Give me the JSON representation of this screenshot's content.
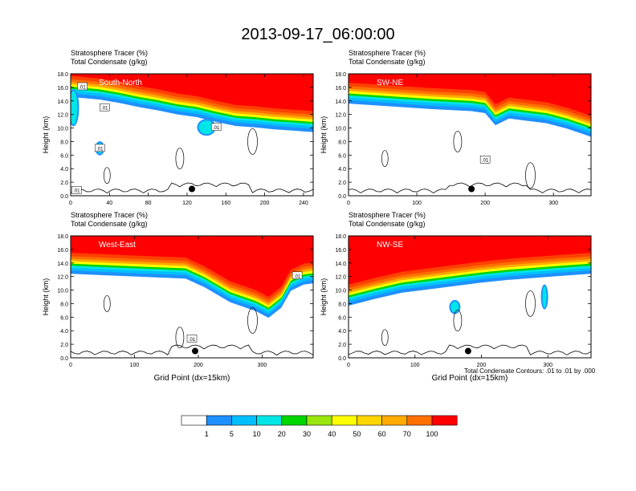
{
  "figure": {
    "title": "2013-09-17_06:00:00",
    "footnote": "Total Condensate Contours: .01 to .01 by .000",
    "xlabel": "Grid Point (dx=15km)"
  },
  "colors": {
    "levels": [
      "#ffffff",
      "#1e90ff",
      "#00bfff",
      "#00e5e5",
      "#00e08a",
      "#00d600",
      "#9ae60f",
      "#ffff00",
      "#ffd500",
      "#ffab00",
      "#ff7000",
      "#ff4100",
      "#ff0000"
    ],
    "contour": "#000000",
    "marker": "#000000",
    "axis": "#000000"
  },
  "chart_data": [
    {
      "type": "heatmap",
      "panel_label": "South-North",
      "title_line1": "Stratosphere Tracer   (%)",
      "title_line2": "Total Condensate   (g/kg)",
      "ylabel": "Height (km)",
      "xlabel": "",
      "xlim": [
        0,
        250
      ],
      "ylim": [
        0,
        18
      ],
      "xticks": [
        0,
        40,
        80,
        120,
        160,
        200,
        240
      ],
      "yticks": [
        "0.0",
        "2.0",
        "4.0",
        "6.0",
        "8.0",
        "10.0",
        "12.0",
        "14.0",
        "16.0",
        "18.0"
      ],
      "tropopause_km": [
        [
          0,
          16.2
        ],
        [
          30,
          15.8
        ],
        [
          50,
          15.3
        ],
        [
          70,
          14.7
        ],
        [
          90,
          14.2
        ],
        [
          110,
          13.6
        ],
        [
          130,
          13.2
        ],
        [
          150,
          12.5
        ],
        [
          170,
          11.9
        ],
        [
          190,
          11.7
        ],
        [
          210,
          11.4
        ],
        [
          230,
          11.2
        ],
        [
          250,
          11.0
        ]
      ],
      "blobs": [
        {
          "x": 3,
          "y": 13,
          "rx": 4,
          "ry": 2.5
        },
        {
          "x": 30,
          "y": 7.0,
          "rx": 3,
          "ry": 0.8
        },
        {
          "x": 140,
          "y": 10.1,
          "rx": 8,
          "ry": 1.0
        }
      ],
      "contour_labels": [
        {
          "x": 12,
          "y": 16.1,
          "text": ".01"
        },
        {
          "x": 35,
          "y": 13,
          "text": ".01"
        },
        {
          "x": 30,
          "y": 7,
          "text": ".01"
        },
        {
          "x": 150,
          "y": 10.1,
          "text": ".01"
        },
        {
          "x": 6,
          "y": 0.8,
          "text": ".01"
        }
      ],
      "marker": {
        "x": 125,
        "y": 1.0
      }
    },
    {
      "type": "heatmap",
      "panel_label": "SW-NE",
      "title_line1": "Stratosphere Tracer   (%)",
      "title_line2": "Total Condensate   (g/kg)",
      "ylabel": "Height (km)",
      "xlabel": "",
      "xlim": [
        0,
        355
      ],
      "ylim": [
        0,
        18
      ],
      "xticks": [
        0,
        100,
        200,
        300
      ],
      "yticks": [
        "0.0",
        "2.0",
        "4.0",
        "6.0",
        "8.0",
        "10.0",
        "12.0",
        "14.0",
        "16.0",
        "18.0"
      ],
      "tropopause_km": [
        [
          0,
          15.2
        ],
        [
          60,
          14.8
        ],
        [
          120,
          14.4
        ],
        [
          180,
          14.1
        ],
        [
          200,
          13.8
        ],
        [
          215,
          12.0
        ],
        [
          235,
          13.0
        ],
        [
          250,
          12.8
        ],
        [
          290,
          12.3
        ],
        [
          320,
          11.5
        ],
        [
          355,
          10.3
        ]
      ],
      "blobs": [],
      "contour_labels": [
        {
          "x": 200,
          "y": 5.3,
          "text": ".01"
        }
      ],
      "marker": {
        "x": 180,
        "y": 1.0
      }
    },
    {
      "type": "heatmap",
      "panel_label": "West-East",
      "title_line1": "Stratosphere Tracer   (%)",
      "title_line2": "Total Condensate   (g/kg)",
      "ylabel": "Height (km)",
      "xlabel": "Grid Point (dx=15km)",
      "xlim": [
        0,
        380
      ],
      "ylim": [
        0,
        18
      ],
      "xticks": [
        0,
        100,
        200,
        300
      ],
      "yticks": [
        "0.0",
        "2.0",
        "4.0",
        "6.0",
        "8.0",
        "10.0",
        "12.0",
        "14.0",
        "16.0",
        "18.0"
      ],
      "tropopause_km": [
        [
          0,
          14.0
        ],
        [
          100,
          13.6
        ],
        [
          180,
          13.3
        ],
        [
          210,
          12.0
        ],
        [
          250,
          9.8
        ],
        [
          290,
          8.5
        ],
        [
          310,
          7.5
        ],
        [
          330,
          9.0
        ],
        [
          345,
          11.5
        ],
        [
          365,
          12.4
        ],
        [
          380,
          12.6
        ]
      ],
      "blobs": [],
      "contour_labels": [
        {
          "x": 355,
          "y": 12.1,
          "text": ".01"
        },
        {
          "x": 190,
          "y": 2.8,
          "text": ".01"
        }
      ],
      "marker": {
        "x": 195,
        "y": 1.0
      }
    },
    {
      "type": "heatmap",
      "panel_label": "NW-SE",
      "title_line1": "Stratosphere Tracer   (%)",
      "title_line2": "Total Condensate   (g/kg)",
      "ylabel": "Height (km)",
      "xlabel": "Grid Point (dx=15km)",
      "xlim": [
        0,
        365
      ],
      "ylim": [
        0,
        18
      ],
      "xticks": [
        0,
        100,
        200,
        300
      ],
      "yticks": [
        "0.0",
        "2.0",
        "4.0",
        "6.0",
        "8.0",
        "10.0",
        "12.0",
        "14.0",
        "16.0",
        "18.0"
      ],
      "tropopause_km": [
        [
          0,
          9.3
        ],
        [
          40,
          10.3
        ],
        [
          80,
          11.2
        ],
        [
          120,
          11.7
        ],
        [
          160,
          12.2
        ],
        [
          200,
          12.7
        ],
        [
          240,
          13.1
        ],
        [
          280,
          13.4
        ],
        [
          320,
          13.7
        ],
        [
          365,
          14.0
        ]
      ],
      "blobs": [
        {
          "x": 160,
          "y": 7.5,
          "rx": 6,
          "ry": 0.8
        },
        {
          "x": 295,
          "y": 9.0,
          "rx": 3,
          "ry": 1.6
        }
      ],
      "contour_labels": [],
      "marker": {
        "x": 180,
        "y": 1.0
      }
    }
  ],
  "colorbar": {
    "labels": [
      "1",
      "5",
      "10",
      "20",
      "30",
      "40",
      "50",
      "60",
      "70",
      "100"
    ]
  }
}
